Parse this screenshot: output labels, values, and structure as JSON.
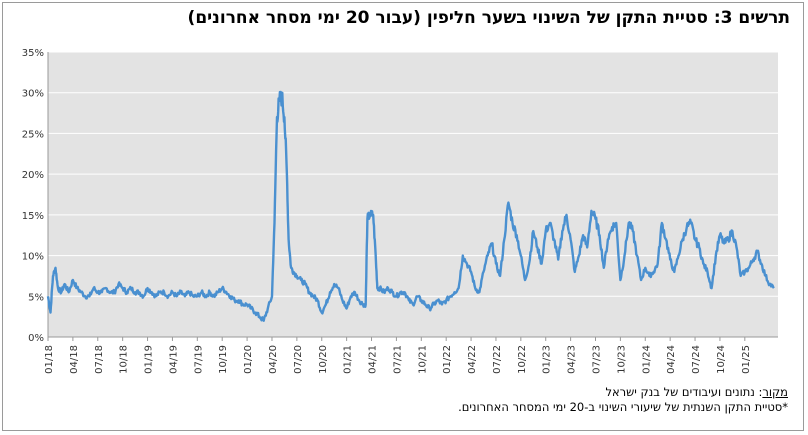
{
  "title": "תרשים 3: סטיית התקן של השינוי בשער חליפין (עבור 20 ימי מסחר אחרונים)",
  "source_label": "מקור",
  "source_text": ": נתונים ועיבודים של בנק ישראל",
  "footnote": "*סטיית התקן השנתית של שיעורי השינוי ב-20 ימי המסחר האחרונים.",
  "colors": {
    "line": "#4a90d0",
    "plot_bg": "#e3e3e3",
    "grid": "#ffffff"
  },
  "chart_data": {
    "type": "line",
    "title": "תרשים 3: סטיית התקן של השינוי בשער חליפין (עבור 20 ימי מסחר אחרונים)",
    "xlabel": "",
    "ylabel": "",
    "ylim": [
      0,
      35
    ],
    "y_ticks": [
      "0%",
      "5%",
      "10%",
      "15%",
      "20%",
      "25%",
      "30%",
      "35%"
    ],
    "x_ticks": [
      "01/18",
      "04/18",
      "07/18",
      "10/18",
      "01/19",
      "04/19",
      "07/19",
      "10/19",
      "01/20",
      "04/20",
      "07/20",
      "10/20",
      "01/21",
      "04/21",
      "07/21",
      "10/21",
      "01/22",
      "04/22",
      "07/22",
      "10/22",
      "01/23",
      "04/23",
      "07/23",
      "10/23",
      "01/24",
      "04/24",
      "07/24",
      "10/24",
      "01/25"
    ],
    "grid": "horizontal",
    "legend": "none",
    "series": [
      {
        "values_percent_monthly_approx": [
          [
            0.0,
            5.0
          ],
          [
            0.3,
            3.0
          ],
          [
            0.6,
            7.5
          ],
          [
            0.9,
            8.5
          ],
          [
            1.2,
            6.0
          ],
          [
            1.6,
            5.5
          ],
          [
            2.0,
            6.5
          ],
          [
            2.5,
            5.5
          ],
          [
            3.0,
            7.0
          ],
          [
            3.5,
            6.0
          ],
          [
            4.0,
            5.5
          ],
          [
            4.5,
            5.0
          ],
          [
            5.0,
            5.0
          ],
          [
            5.5,
            6.0
          ],
          [
            6.0,
            5.5
          ],
          [
            6.5,
            5.5
          ],
          [
            7.0,
            6.0
          ],
          [
            7.5,
            5.5
          ],
          [
            8.0,
            5.5
          ],
          [
            8.5,
            6.5
          ],
          [
            9.0,
            6.0
          ],
          [
            9.5,
            5.5
          ],
          [
            10.0,
            6.0
          ],
          [
            10.5,
            5.5
          ],
          [
            11.0,
            5.5
          ],
          [
            11.5,
            5.0
          ],
          [
            12.0,
            6.0
          ],
          [
            12.5,
            5.5
          ],
          [
            13.0,
            5.0
          ],
          [
            13.5,
            5.5
          ],
          [
            14.0,
            5.5
          ],
          [
            14.5,
            5.0
          ],
          [
            15.0,
            5.5
          ],
          [
            15.5,
            5.0
          ],
          [
            16.0,
            5.5
          ],
          [
            16.5,
            5.0
          ],
          [
            17.0,
            5.5
          ],
          [
            17.5,
            5.0
          ],
          [
            18.0,
            5.0
          ],
          [
            18.5,
            5.5
          ],
          [
            19.0,
            5.0
          ],
          [
            19.5,
            5.5
          ],
          [
            20.0,
            5.0
          ],
          [
            20.5,
            5.5
          ],
          [
            21.0,
            6.0
          ],
          [
            21.5,
            5.5
          ],
          [
            22.0,
            5.0
          ],
          [
            22.5,
            4.5
          ],
          [
            23.0,
            4.5
          ],
          [
            23.5,
            4.0
          ],
          [
            24.0,
            4.0
          ],
          [
            24.5,
            3.5
          ],
          [
            25.0,
            3.0
          ],
          [
            25.5,
            2.5
          ],
          [
            26.0,
            2.0
          ],
          [
            26.5,
            3.5
          ],
          [
            27.0,
            5.0
          ],
          [
            27.3,
            14.0
          ],
          [
            27.6,
            27.0
          ],
          [
            27.9,
            29.0
          ],
          [
            28.2,
            29.5
          ],
          [
            28.5,
            27.0
          ],
          [
            28.8,
            20.0
          ],
          [
            29.0,
            12.0
          ],
          [
            29.3,
            8.5
          ],
          [
            29.6,
            8.0
          ],
          [
            30.0,
            7.5
          ],
          [
            30.5,
            7.0
          ],
          [
            31.0,
            6.5
          ],
          [
            31.5,
            5.5
          ],
          [
            32.0,
            5.0
          ],
          [
            32.5,
            4.5
          ],
          [
            33.0,
            3.0
          ],
          [
            33.5,
            4.0
          ],
          [
            34.0,
            5.5
          ],
          [
            34.5,
            6.5
          ],
          [
            35.0,
            6.0
          ],
          [
            35.5,
            4.5
          ],
          [
            36.0,
            3.5
          ],
          [
            36.5,
            5.0
          ],
          [
            37.0,
            5.5
          ],
          [
            37.5,
            4.5
          ],
          [
            38.0,
            4.0
          ],
          [
            38.3,
            4.0
          ],
          [
            38.5,
            14.5
          ],
          [
            38.8,
            15.0
          ],
          [
            39.2,
            15.0
          ],
          [
            39.5,
            10.0
          ],
          [
            39.7,
            6.0
          ],
          [
            40.0,
            6.0
          ],
          [
            40.5,
            5.5
          ],
          [
            41.0,
            6.0
          ],
          [
            41.5,
            5.5
          ],
          [
            42.0,
            5.0
          ],
          [
            42.5,
            5.5
          ],
          [
            43.0,
            5.5
          ],
          [
            43.5,
            4.5
          ],
          [
            44.0,
            4.0
          ],
          [
            44.5,
            5.0
          ],
          [
            45.0,
            4.5
          ],
          [
            45.5,
            4.0
          ],
          [
            46.0,
            3.5
          ],
          [
            46.5,
            4.0
          ],
          [
            47.0,
            4.5
          ],
          [
            47.5,
            4.0
          ],
          [
            48.0,
            4.5
          ],
          [
            48.5,
            5.0
          ],
          [
            49.0,
            5.5
          ],
          [
            49.5,
            6.0
          ],
          [
            50.0,
            10.0
          ],
          [
            50.5,
            9.0
          ],
          [
            51.0,
            8.0
          ],
          [
            51.5,
            6.0
          ],
          [
            52.0,
            5.5
          ],
          [
            52.5,
            8.0
          ],
          [
            53.0,
            10.0
          ],
          [
            53.5,
            11.5
          ],
          [
            54.0,
            9.0
          ],
          [
            54.5,
            7.5
          ],
          [
            55.0,
            12.0
          ],
          [
            55.5,
            16.5
          ],
          [
            56.0,
            14.0
          ],
          [
            56.5,
            12.5
          ],
          [
            57.0,
            10.0
          ],
          [
            57.5,
            7.0
          ],
          [
            58.0,
            9.0
          ],
          [
            58.5,
            13.0
          ],
          [
            59.0,
            11.0
          ],
          [
            59.5,
            9.0
          ],
          [
            60.0,
            13.0
          ],
          [
            60.5,
            14.0
          ],
          [
            61.0,
            12.0
          ],
          [
            61.5,
            9.5
          ],
          [
            62.0,
            13.0
          ],
          [
            62.5,
            15.0
          ],
          [
            63.0,
            12.0
          ],
          [
            63.5,
            8.0
          ],
          [
            64.0,
            10.0
          ],
          [
            64.5,
            12.5
          ],
          [
            65.0,
            11.0
          ],
          [
            65.5,
            15.5
          ],
          [
            66.0,
            14.5
          ],
          [
            66.5,
            12.5
          ],
          [
            67.0,
            8.5
          ],
          [
            67.5,
            12.0
          ],
          [
            68.0,
            13.5
          ],
          [
            68.5,
            14.0
          ],
          [
            69.0,
            7.0
          ],
          [
            69.5,
            10.0
          ],
          [
            70.0,
            14.0
          ],
          [
            70.5,
            13.0
          ],
          [
            71.0,
            10.0
          ],
          [
            71.5,
            7.0
          ],
          [
            72.0,
            8.5
          ],
          [
            72.5,
            7.5
          ],
          [
            73.0,
            8.0
          ],
          [
            73.5,
            9.0
          ],
          [
            74.0,
            14.0
          ],
          [
            74.5,
            12.0
          ],
          [
            75.0,
            9.5
          ],
          [
            75.5,
            8.0
          ],
          [
            76.0,
            10.0
          ],
          [
            76.5,
            12.0
          ],
          [
            77.0,
            13.5
          ],
          [
            77.5,
            14.0
          ],
          [
            78.0,
            12.0
          ],
          [
            78.5,
            11.0
          ],
          [
            79.0,
            9.0
          ],
          [
            79.5,
            8.0
          ],
          [
            80.0,
            6.0
          ],
          [
            80.5,
            10.0
          ],
          [
            81.0,
            12.5
          ],
          [
            81.5,
            11.5
          ],
          [
            82.0,
            12.0
          ],
          [
            82.5,
            13.0
          ],
          [
            83.0,
            11.0
          ],
          [
            83.5,
            7.5
          ],
          [
            84.0,
            8.0
          ],
          [
            84.5,
            8.5
          ],
          [
            85.0,
            9.5
          ],
          [
            85.5,
            10.5
          ],
          [
            86.0,
            9.0
          ],
          [
            86.5,
            7.5
          ],
          [
            87.0,
            6.5
          ],
          [
            87.5,
            6.0
          ]
        ]
      }
    ]
  }
}
